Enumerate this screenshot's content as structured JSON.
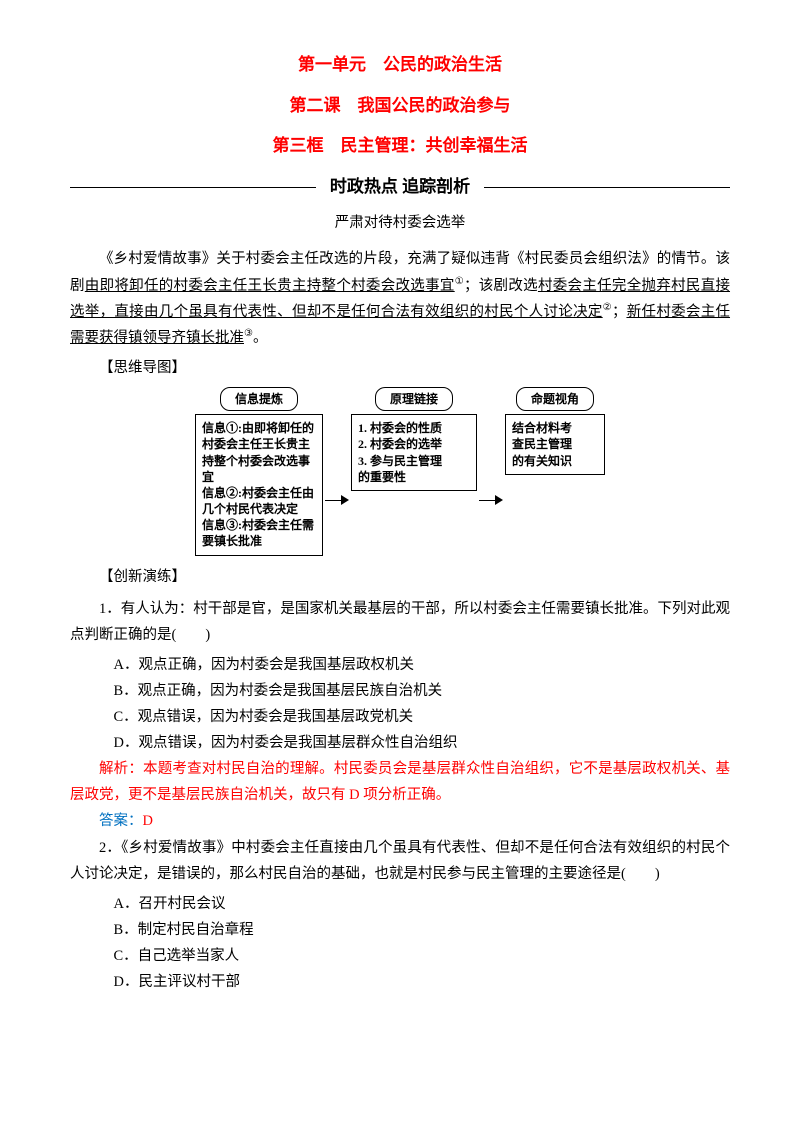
{
  "colors": {
    "heading_red": "#ff0000",
    "answer_blue": "#0070c0",
    "text_black": "#000000",
    "background": "#ffffff"
  },
  "typography": {
    "body_fontsize": 14.5,
    "title_fontsize": 17,
    "diagram_fontsize": 12,
    "line_height": 1.8
  },
  "headings": {
    "unit": "第一单元　公民的政治生活",
    "lesson": "第二课　我国公民的政治参与",
    "frame": "第三框　民主管理：共创幸福生活"
  },
  "section_divider": "时政热点 追踪剖析",
  "subtitle": "严肃对待村委会选举",
  "intro": {
    "pre": "《乡村爱情故事》关于村委会主任改选的片段，充满了疑似违背《村民委员会组织法》的情节。该剧",
    "u1": "由即将卸任的村委会主任王长贵主持整个村委会改选事宜",
    "sup1": "①",
    "mid1": "；该剧改选",
    "u2": "村委会主任完全抛弃村民直接选举，直接由几个虽具有代表性、但却不是任何合法有效组织的村民个人讨论决定",
    "sup2": "②",
    "mid2": "；",
    "u3": "新任村委会主任需要获得镇领导齐镇长批准",
    "sup3": "③",
    "end": "。"
  },
  "bracket1": "【思维导图】",
  "diagram": {
    "col1": {
      "cap": "信息提炼",
      "text": "信息①:由即将卸任的\n村委会主任王长贵主\n持整个村委会改选事\n宜\n信息②:村委会主任由\n几个村民代表决定\n信息③:村委会主任需\n要镇长批准"
    },
    "col2": {
      "cap": "原理链接",
      "text": "1. 村委会的性质\n2. 村委会的选举\n3. 参与民主管理\n的重要性"
    },
    "col3": {
      "cap": "命题视角",
      "text": "结合材料考\n查民主管理\n的有关知识"
    }
  },
  "bracket2": "【创新演练】",
  "q1": {
    "stem": "1．有人认为：村干部是官，是国家机关最基层的干部，所以村委会主任需要镇长批准。下列对此观点判断正确的是(　　)",
    "A": "A．观点正确，因为村委会是我国基层政权机关",
    "B": "B．观点正确，因为村委会是我国基层民族自治机关",
    "C": "C．观点错误，因为村委会是我国基层政党机关",
    "D": "D．观点错误，因为村委会是我国基层群众性自治组织",
    "analysis": "解析：本题考查对村民自治的理解。村民委员会是基层群众性自治组织，它不是基层政权机关、基层政党，更不是基层民族自治机关，故只有 D 项分析正确。",
    "answer_label": "答案：",
    "answer_value": "D"
  },
  "q2": {
    "stem": "2．《乡村爱情故事》中村委会主任直接由几个虽具有代表性、但却不是任何合法有效组织的村民个人讨论决定，是错误的，那么村民自治的基础，也就是村民参与民主管理的主要途径是(　　)",
    "A": "A．召开村民会议",
    "B": "B．制定村民自治章程",
    "C": "C．自己选举当家人",
    "D": "D．民主评议村干部"
  }
}
